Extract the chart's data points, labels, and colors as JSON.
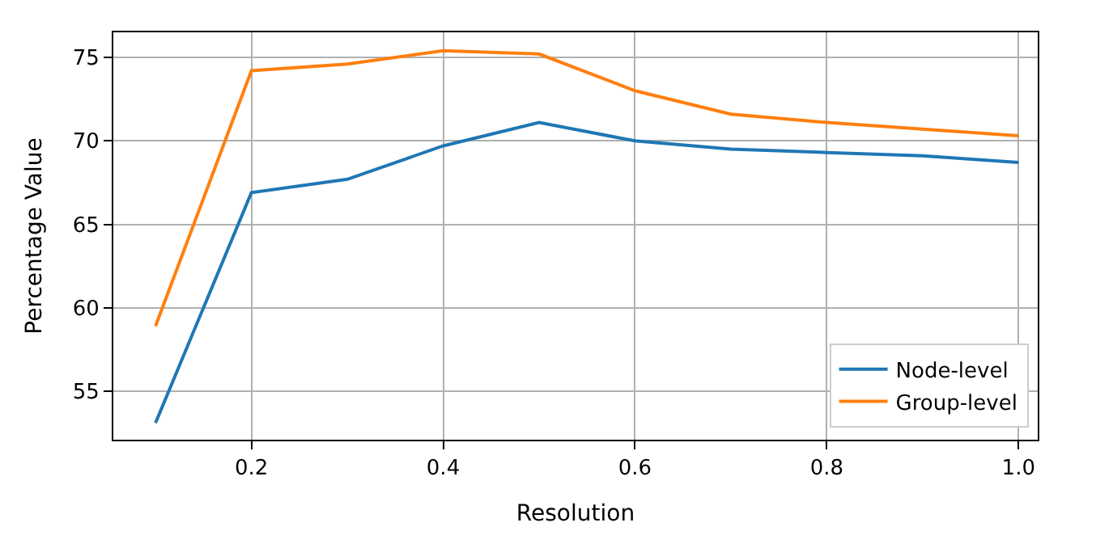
{
  "chart_data": {
    "type": "line",
    "xlabel": "Resolution",
    "ylabel": "Percentage Value",
    "x": [
      0.1,
      0.2,
      0.3,
      0.4,
      0.5,
      0.6,
      0.7,
      0.8,
      0.9,
      1.0
    ],
    "series": [
      {
        "name": "Node-level",
        "color": "#1f77b4",
        "values": [
          53.1,
          66.9,
          67.7,
          69.7,
          71.1,
          70.0,
          69.5,
          69.3,
          69.1,
          68.7
        ]
      },
      {
        "name": "Group-level",
        "color": "#ff7f0e",
        "values": [
          58.9,
          74.2,
          74.6,
          75.4,
          75.2,
          73.0,
          71.6,
          71.1,
          70.7,
          70.3
        ]
      }
    ],
    "xlim": [
      0.056,
      1.02
    ],
    "ylim": [
      52.1,
      76.5
    ],
    "xticks": [
      {
        "value": 0.2,
        "label": "0.2"
      },
      {
        "value": 0.4,
        "label": "0.4"
      },
      {
        "value": 0.6,
        "label": "0.6"
      },
      {
        "value": 0.8,
        "label": "0.8"
      },
      {
        "value": 1.0,
        "label": "1.0"
      }
    ],
    "yticks": [
      55,
      60,
      65,
      70,
      75
    ],
    "grid": true,
    "legend": "bottom right",
    "marker": "none",
    "line_style": "solid"
  }
}
